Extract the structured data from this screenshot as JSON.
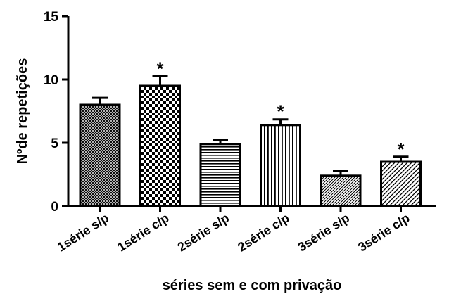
{
  "chart_data": {
    "type": "bar",
    "title": "",
    "xlabel": "séries sem e com privação",
    "ylabel": "Nºde repetições",
    "ylim": [
      0,
      15
    ],
    "yticks": [
      0,
      5,
      10,
      15
    ],
    "grid": false,
    "categories": [
      "1série s/p",
      "1série c/p",
      "2série s/p",
      "2série c/p",
      "3série s/p",
      "3série c/p"
    ],
    "values": [
      8.0,
      9.5,
      4.9,
      6.4,
      2.4,
      3.5
    ],
    "errors": [
      0.55,
      0.75,
      0.35,
      0.45,
      0.35,
      0.4
    ],
    "significance": [
      "",
      "*",
      "",
      "*",
      "",
      "*"
    ],
    "patterns": [
      "crosshatch-fine",
      "checker",
      "horizontal",
      "vertical",
      "diagonal-fine",
      "diagonal"
    ]
  }
}
